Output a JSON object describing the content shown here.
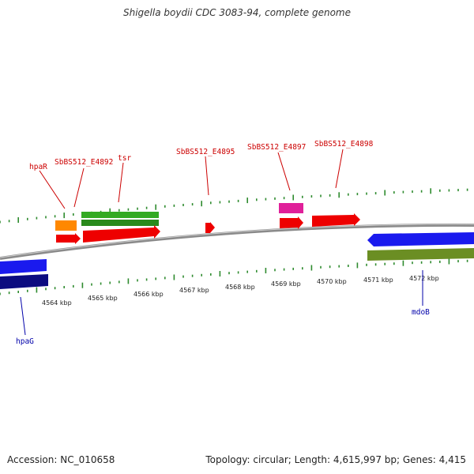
{
  "title": "Shigella boydii CDC 3083-94, complete genome",
  "footer": {
    "accession": "Accession: NC_010658",
    "stats": "Topology: circular; Length: 4,615,997 bp; Genes: 4,415"
  },
  "scale_labels": [
    "4564 kbp",
    "4565 kbp",
    "4566 kbp",
    "4567 kbp",
    "4568 kbp",
    "4569 kbp",
    "4570 kbp",
    "4571 kbp",
    "4572 kbp"
  ],
  "gene_labels": [
    "hpaR",
    "SbBS512_E4892",
    "tsr",
    "SbBS512_E4895",
    "SbBS512_E4897",
    "SbBS512_E4898",
    "hpaG",
    "mdoB"
  ],
  "colors": {
    "backbone": "#8a8a8a",
    "forward_label": "#cc0000",
    "reverse_label": "#0000aa",
    "tick": "#2e8b2e",
    "red": "#ee0000",
    "green": "#33aa22",
    "orange": "#ff8800",
    "magenta": "#e0209a",
    "blue": "#1a1aee",
    "navy": "#0c0c80",
    "olive": "#6b8e23"
  }
}
